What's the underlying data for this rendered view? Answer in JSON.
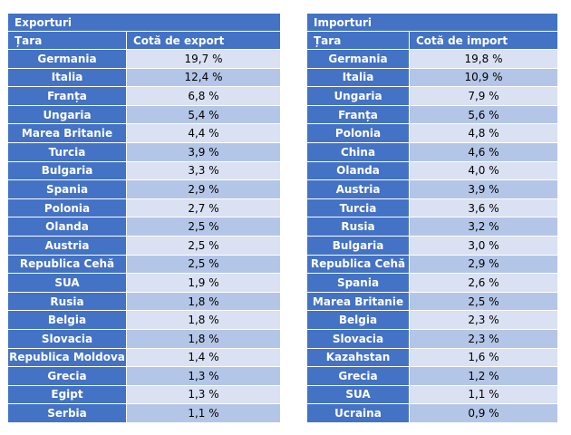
{
  "tables": [
    {
      "id": "exp",
      "title": "Exporturi",
      "col_country": "Țara",
      "col_value": "Cotă de export",
      "rows": [
        [
          "Germania",
          "19,7 %"
        ],
        [
          "Italia",
          "12,4 %"
        ],
        [
          "Franța",
          "6,8 %"
        ],
        [
          "Ungaria",
          "5,4 %"
        ],
        [
          "Marea Britanie",
          "4,4 %"
        ],
        [
          "Turcia",
          "3,9 %"
        ],
        [
          "Bulgaria",
          "3,3 %"
        ],
        [
          "Spania",
          "2,9 %"
        ],
        [
          "Polonia",
          "2,7 %"
        ],
        [
          "Olanda",
          "2,5 %"
        ],
        [
          "Austria",
          "2,5 %"
        ],
        [
          "Republica Cehă",
          "2,5 %"
        ],
        [
          "SUA",
          "1,9 %"
        ],
        [
          "Rusia",
          "1,8 %"
        ],
        [
          "Belgia",
          "1,8 %"
        ],
        [
          "Slovacia",
          "1,8 %"
        ],
        [
          "Republica Moldova",
          "1,4 %"
        ],
        [
          "Grecia",
          "1,3 %"
        ],
        [
          "Egipt",
          "1,3 %"
        ],
        [
          "Serbia",
          "1,1 %"
        ]
      ]
    },
    {
      "id": "imp",
      "title": "Importuri",
      "col_country": "Țara",
      "col_value": "Cotă de import",
      "rows": [
        [
          "Germania",
          "19,8 %"
        ],
        [
          "Italia",
          "10,9 %"
        ],
        [
          "Ungaria",
          "7,9 %"
        ],
        [
          "Franța",
          "5,6 %"
        ],
        [
          "Polonia",
          "4,8 %"
        ],
        [
          "China",
          "4,6 %"
        ],
        [
          "Olanda",
          "4,0 %"
        ],
        [
          "Austria",
          "3,9 %"
        ],
        [
          "Turcia",
          "3,6 %"
        ],
        [
          "Rusia",
          "3,2 %"
        ],
        [
          "Bulgaria",
          "3,0 %"
        ],
        [
          "Republica Cehă",
          "2,9 %"
        ],
        [
          "Spania",
          "2,6 %"
        ],
        [
          "Marea Britanie",
          "2,5 %"
        ],
        [
          "Belgia",
          "2,3 %"
        ],
        [
          "Slovacia",
          "2,3 %"
        ],
        [
          "Kazahstan",
          "1,6 %"
        ],
        [
          "Grecia",
          "1,2 %"
        ],
        [
          "SUA",
          "1,1 %"
        ],
        [
          "Ucraina",
          "0,9 %"
        ]
      ]
    }
  ]
}
